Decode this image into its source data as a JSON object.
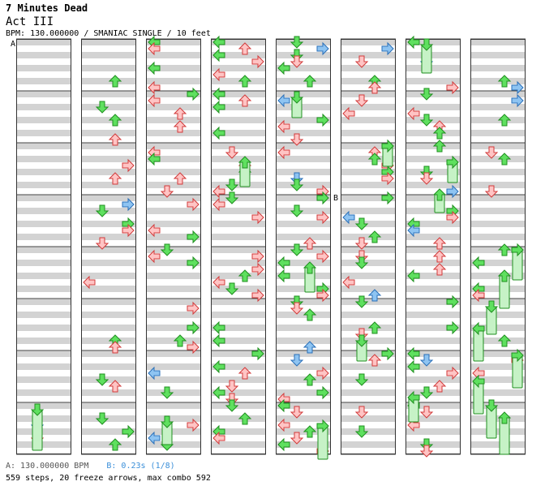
{
  "song": {
    "title": "7 Minutes Dead",
    "subtitle": "Act III",
    "info": "BPM: 130.000000 / SMANIAC SINGLE / 10 feet"
  },
  "markers": {
    "a": "A",
    "b": "B"
  },
  "footer": {
    "bpm_a": "A: 130.000000 BPM",
    "bpm_b": "B: 0.23s (1/8)",
    "summary": "559 steps, 20 freeze arrows, max combo 592"
  },
  "colors": {
    "red_fill": "#ffc4c4",
    "red_stroke": "#d23a3a",
    "green_fill": "#5fe05f",
    "green_stroke": "#1f8f1f",
    "blue_fill": "#8ec4f2",
    "blue_stroke": "#2a6fb8",
    "freeze_fill": "#c6f2c6",
    "freeze_stroke": "#1f8f1f",
    "stripe": "#d3d3d3"
  },
  "columns": 8,
  "measures_per_column": 8,
  "freeze_arrows": 20
}
